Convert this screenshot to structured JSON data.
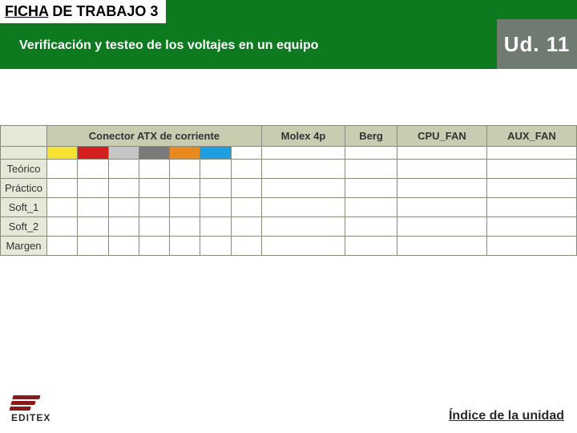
{
  "header": {
    "title_prefix": "FICHA",
    "title_rest": " DE TRABAJO 3",
    "subtitle": "Verificación y testeo de los voltajes en un equipo",
    "unit_label": "Ud. 11"
  },
  "table": {
    "head": {
      "rowlabel": "",
      "atx_label": "Conector ATX de corriente",
      "molex_label": "Molex 4p",
      "berg_label": "Berg",
      "cpu_fan_label": "CPU_FAN",
      "aux_fan_label": "AUX_FAN"
    },
    "atx_colors": [
      "#f7e233",
      "#d41f1f",
      "#c6c6c6",
      "#7a7a7a",
      "#e88a1f",
      "#1f9fe0",
      "#ffffff"
    ],
    "row_colors": {
      "head_bg": "#c8ccb0",
      "label_bg": "#e6e8d8",
      "cell_bg": "#ffffff",
      "border": "#8a8a7a"
    },
    "rows": [
      {
        "label": "Teórico"
      },
      {
        "label": "Práctico"
      },
      {
        "label": "Soft_1"
      },
      {
        "label": "Soft_2"
      },
      {
        "label": "Margen"
      }
    ]
  },
  "footer": {
    "logo_text": "EDITEX",
    "index_link": "Índice de la unidad"
  }
}
